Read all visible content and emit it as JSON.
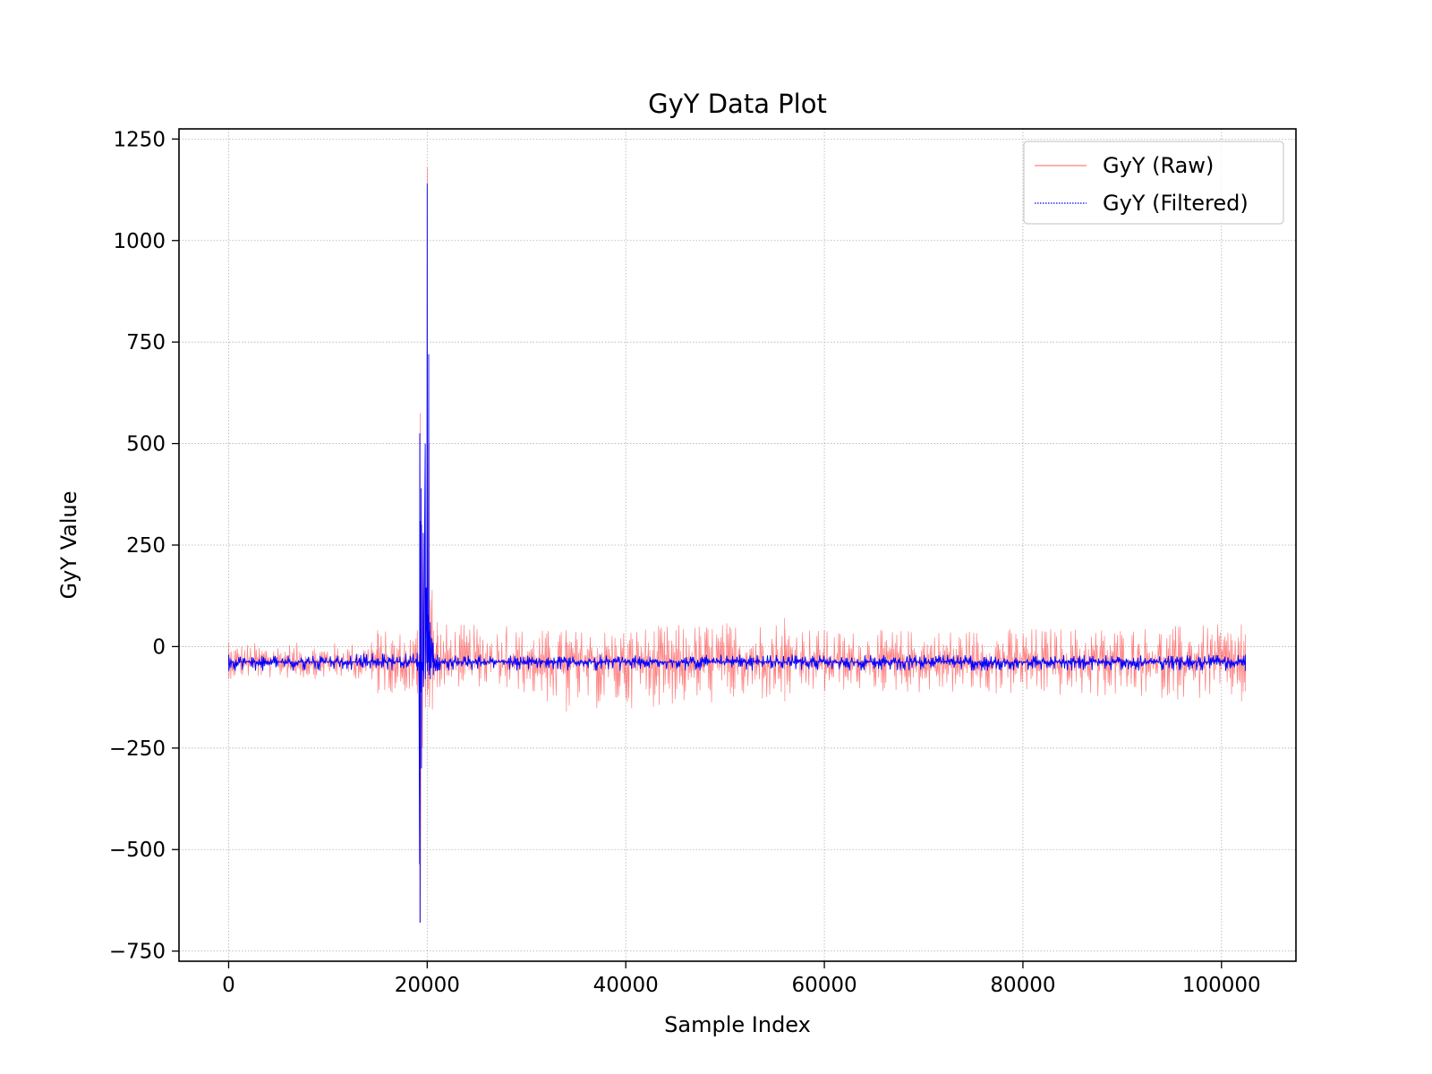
{
  "chart_data": {
    "type": "line",
    "title": "GyY Data Plot",
    "xlabel": "Sample Index",
    "ylabel": "GyY Value",
    "xlim": [
      -5000,
      107500
    ],
    "ylim": [
      -775,
      1275
    ],
    "xticks": [
      0,
      20000,
      40000,
      60000,
      80000,
      100000
    ],
    "xtick_labels": [
      "0",
      "20000",
      "40000",
      "60000",
      "80000",
      "100000"
    ],
    "yticks": [
      -750,
      -500,
      -250,
      0,
      250,
      500,
      750,
      1000,
      1250
    ],
    "ytick_labels": [
      "−750",
      "−500",
      "−250",
      "0",
      "250",
      "500",
      "750",
      "1000",
      "1250"
    ],
    "grid": true,
    "legend_position": "top-right",
    "series": [
      {
        "name": "GyY (Raw)",
        "color": "#ff0000",
        "opacity": 0.5,
        "style": "solid",
        "x_range": [
          0,
          102400
        ],
        "baseline": -38,
        "x": [
          0,
          14400,
          15000,
          19000,
          19300,
          19500,
          19800,
          20000,
          20200,
          20500,
          21000,
          28000,
          34000,
          56000,
          60000,
          102000,
          102400
        ],
        "high": [
          10,
          10,
          40,
          40,
          575,
          300,
          330,
          1180,
          500,
          140,
          60,
          50,
          40,
          70,
          40,
          55,
          30
        ],
        "low": [
          -80,
          -80,
          -115,
          -115,
          -680,
          -250,
          -150,
          -120,
          -150,
          -155,
          -100,
          -100,
          -160,
          -135,
          -110,
          -135,
          -110
        ]
      },
      {
        "name": "GyY (Filtered)",
        "color": "#0000ff",
        "opacity": 1,
        "style": "dotted",
        "x_range": [
          0,
          102400
        ],
        "baseline": -38,
        "x": [
          0,
          19000,
          19250,
          19400,
          19600,
          19800,
          20000,
          20150,
          20300,
          20600,
          21000,
          102400
        ],
        "high": [
          -20,
          -15,
          525,
          390,
          280,
          500,
          1140,
          720,
          60,
          10,
          -20,
          -20
        ],
        "low": [
          -60,
          -60,
          -680,
          -300,
          -100,
          -80,
          -60,
          -70,
          -80,
          -70,
          -60,
          -60
        ]
      }
    ]
  }
}
